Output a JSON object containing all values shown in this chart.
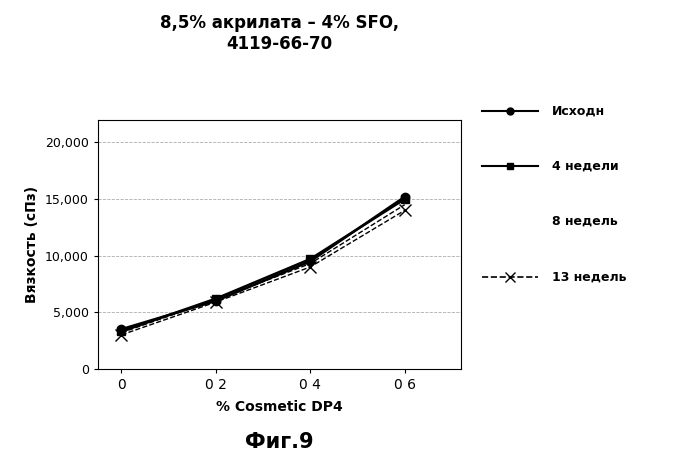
{
  "title": "8,5% акрилата – 4% SFO,\n4119-66-70",
  "xlabel": "% Cosmetic DP4",
  "ylabel": "Вязкость (сПз)",
  "figcaption": "Фиг.9",
  "xlim": [
    -0.05,
    0.72
  ],
  "ylim": [
    0,
    22000
  ],
  "yticks": [
    0,
    5000,
    10000,
    15000,
    20000
  ],
  "yticklabels": [
    "0",
    "5,000",
    "10,000",
    "15,000",
    "20,000"
  ],
  "xticks": [
    0,
    0.2,
    0.4,
    0.6
  ],
  "xticklabels": [
    "0",
    "0 2",
    "0 4",
    "0 6"
  ],
  "series": [
    {
      "label": "Исходн",
      "x": [
        0,
        0.2,
        0.4,
        0.6
      ],
      "y": [
        3500,
        6000,
        9500,
        15200
      ],
      "color": "#000000",
      "linestyle": "-",
      "marker": "o",
      "markersize": 6,
      "linewidth": 1.8,
      "zorder": 4
    },
    {
      "label": "4 недели",
      "x": [
        0,
        0.2,
        0.4,
        0.6
      ],
      "y": [
        3300,
        6200,
        9700,
        15000
      ],
      "color": "#000000",
      "linestyle": "-",
      "marker": "s",
      "markersize": 6,
      "linewidth": 1.8,
      "zorder": 3
    },
    {
      "label": "8 недель",
      "x": [
        0,
        0.2,
        0.4,
        0.6
      ],
      "y": [
        3200,
        6100,
        9300,
        14500
      ],
      "color": "#000000",
      "linestyle": "--",
      "marker": null,
      "markersize": 0,
      "linewidth": 1.0,
      "zorder": 2
    },
    {
      "label": "13 недель",
      "x": [
        0,
        0.2,
        0.4,
        0.6
      ],
      "y": [
        3000,
        5900,
        9000,
        14000
      ],
      "color": "#000000",
      "linestyle": "--",
      "marker": "x",
      "markersize": 8,
      "linewidth": 1.0,
      "zorder": 2
    }
  ],
  "legend_items": [
    {
      "label": "Исходн",
      "linestyle": "-",
      "marker": "o",
      "markersize": 5,
      "linewidth": 1.5
    },
    {
      "label": "4 недели",
      "linestyle": "-",
      "marker": "s",
      "markersize": 5,
      "linewidth": 1.5
    },
    {
      "label": "8 недель",
      "linestyle": null,
      "marker": null,
      "markersize": 0,
      "linewidth": 0
    },
    {
      "label": "13 недель",
      "linestyle": "--",
      "marker": "x",
      "markersize": 7,
      "linewidth": 1.2
    }
  ],
  "background_color": "#ffffff",
  "grid_color": "#888888"
}
